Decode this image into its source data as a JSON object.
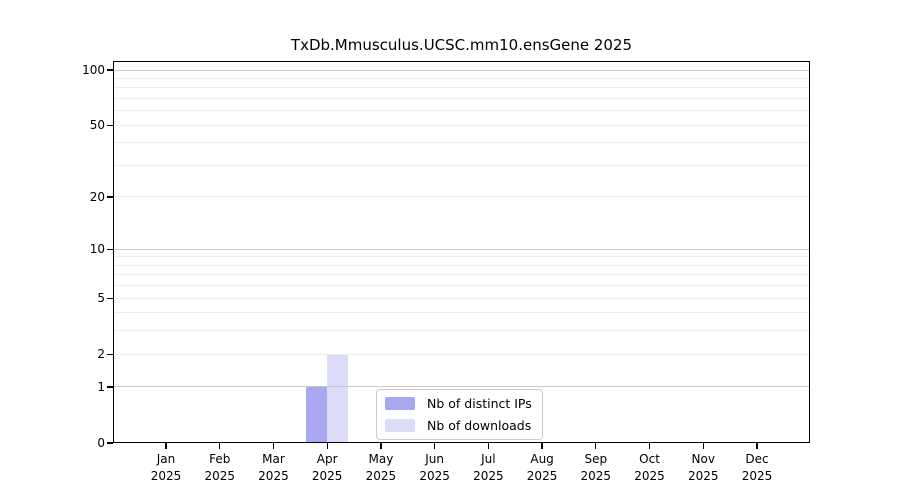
{
  "chart_data": {
    "type": "bar",
    "title": "TxDb.Mmusculus.UCSC.mm10.ensGene 2025",
    "categories": [
      "Jan",
      "Feb",
      "Mar",
      "Apr",
      "May",
      "Jun",
      "Jul",
      "Aug",
      "Sep",
      "Oct",
      "Nov",
      "Dec"
    ],
    "category_year": "2025",
    "series": [
      {
        "name": "Nb of distinct IPs",
        "color": "#a8a8f2",
        "values": [
          0,
          0,
          0,
          1,
          0,
          0,
          0,
          0,
          0,
          0,
          0,
          0
        ]
      },
      {
        "name": "Nb of downloads",
        "color": "#dcdcf9",
        "values": [
          0,
          0,
          0,
          2,
          0,
          0,
          0,
          0,
          0,
          0,
          0,
          0
        ]
      }
    ],
    "y_axis": {
      "scale": "log1p",
      "ticks": [
        0,
        1,
        2,
        5,
        10,
        20,
        50,
        100
      ],
      "ylim": [
        0,
        112
      ],
      "major_gridlines": [
        1,
        10,
        100
      ],
      "minor_gridlines": [
        2,
        3,
        4,
        5,
        6,
        7,
        8,
        9,
        20,
        30,
        40,
        50,
        60,
        70,
        80,
        90
      ]
    },
    "xlabel": "",
    "ylabel": "",
    "grid": true,
    "legend_position": "inside lower-center"
  },
  "colors": {
    "bar_distinct_ips": "#a8a8f2",
    "bar_downloads": "#dcdcf9",
    "grid_major": "#c8c8c8",
    "grid_minor": "#ededed",
    "frame": "#000000",
    "legend_border": "#cccccc",
    "background": "#ffffff"
  }
}
